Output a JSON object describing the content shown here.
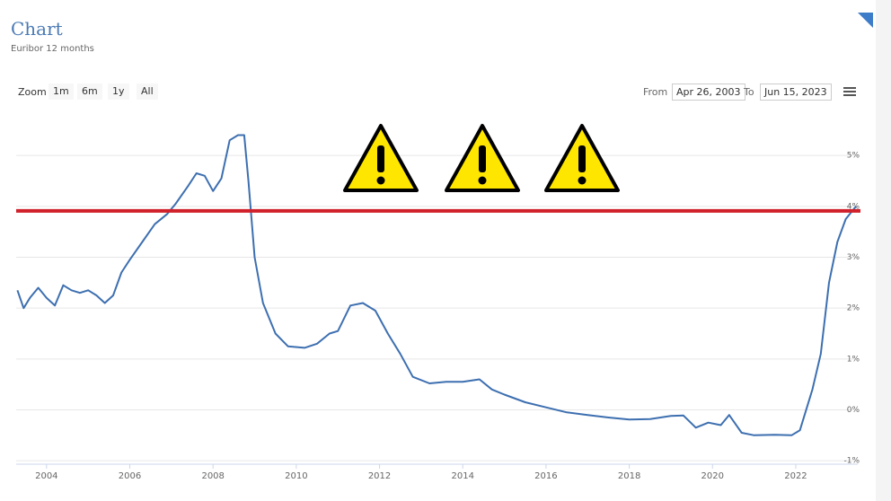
{
  "header": {
    "title": "Chart",
    "subtitle": "Euribor 12 months"
  },
  "toolbar": {
    "zoom_label": "Zoom",
    "buttons": [
      "1m",
      "6m",
      "1y",
      "All"
    ],
    "from_label": "From",
    "from_date": "Apr 26, 2003",
    "to_label": "To",
    "to_date": "Jun 15, 2023"
  },
  "chart_data": {
    "type": "line",
    "color": "#3d6fb0",
    "x": [
      2003.3,
      2003.45,
      2003.6,
      2003.8,
      2004.0,
      2004.2,
      2004.4,
      2004.6,
      2004.8,
      2005.0,
      2005.2,
      2005.4,
      2005.6,
      2005.8,
      2006.0,
      2006.3,
      2006.6,
      2006.9,
      2007.1,
      2007.4,
      2007.6,
      2007.8,
      2008.0,
      2008.2,
      2008.4,
      2008.6,
      2008.75,
      2008.85,
      2009.0,
      2009.2,
      2009.5,
      2009.8,
      2010.2,
      2010.5,
      2010.8,
      2011.0,
      2011.3,
      2011.6,
      2011.9,
      2012.2,
      2012.5,
      2012.8,
      2013.2,
      2013.6,
      2014.0,
      2014.4,
      2014.7,
      2015.0,
      2015.5,
      2016.0,
      2016.5,
      2017.0,
      2017.5,
      2018.0,
      2018.5,
      2019.0,
      2019.3,
      2019.6,
      2019.9,
      2020.2,
      2020.4,
      2020.7,
      2021.0,
      2021.5,
      2021.9,
      2022.1,
      2022.4,
      2022.6,
      2022.8,
      2023.0,
      2023.2,
      2023.45
    ],
    "values": [
      2.35,
      2.0,
      2.2,
      2.4,
      2.2,
      2.05,
      2.45,
      2.35,
      2.3,
      2.35,
      2.25,
      2.1,
      2.25,
      2.7,
      2.95,
      3.3,
      3.65,
      3.85,
      4.05,
      4.4,
      4.65,
      4.6,
      4.3,
      4.55,
      5.3,
      5.4,
      5.4,
      4.5,
      3.0,
      2.1,
      1.5,
      1.25,
      1.22,
      1.3,
      1.5,
      1.55,
      2.05,
      2.1,
      1.95,
      1.5,
      1.1,
      0.65,
      0.52,
      0.55,
      0.55,
      0.6,
      0.4,
      0.3,
      0.15,
      0.05,
      -0.05,
      -0.1,
      -0.15,
      -0.19,
      -0.18,
      -0.12,
      -0.11,
      -0.35,
      -0.25,
      -0.3,
      -0.1,
      -0.45,
      -0.5,
      -0.49,
      -0.5,
      -0.4,
      0.4,
      1.1,
      2.5,
      3.3,
      3.75,
      4.0
    ],
    "xlim": [
      2003.27,
      2023.49
    ],
    "xticks": [
      2004,
      2006,
      2008,
      2010,
      2012,
      2014,
      2016,
      2018,
      2020,
      2022
    ],
    "ylim": [
      -1.05,
      5.85
    ],
    "yticks": [
      {
        "value": -1,
        "label": "-1%"
      },
      {
        "value": 0,
        "label": "0%"
      },
      {
        "value": 1,
        "label": "1%"
      },
      {
        "value": 2,
        "label": "2%"
      },
      {
        "value": 3,
        "label": "3%"
      },
      {
        "value": 4,
        "label": "4%"
      },
      {
        "value": 5,
        "label": "5%"
      }
    ],
    "grid": true,
    "reference_line": {
      "value": 3.91,
      "color": "#d0202a"
    }
  }
}
